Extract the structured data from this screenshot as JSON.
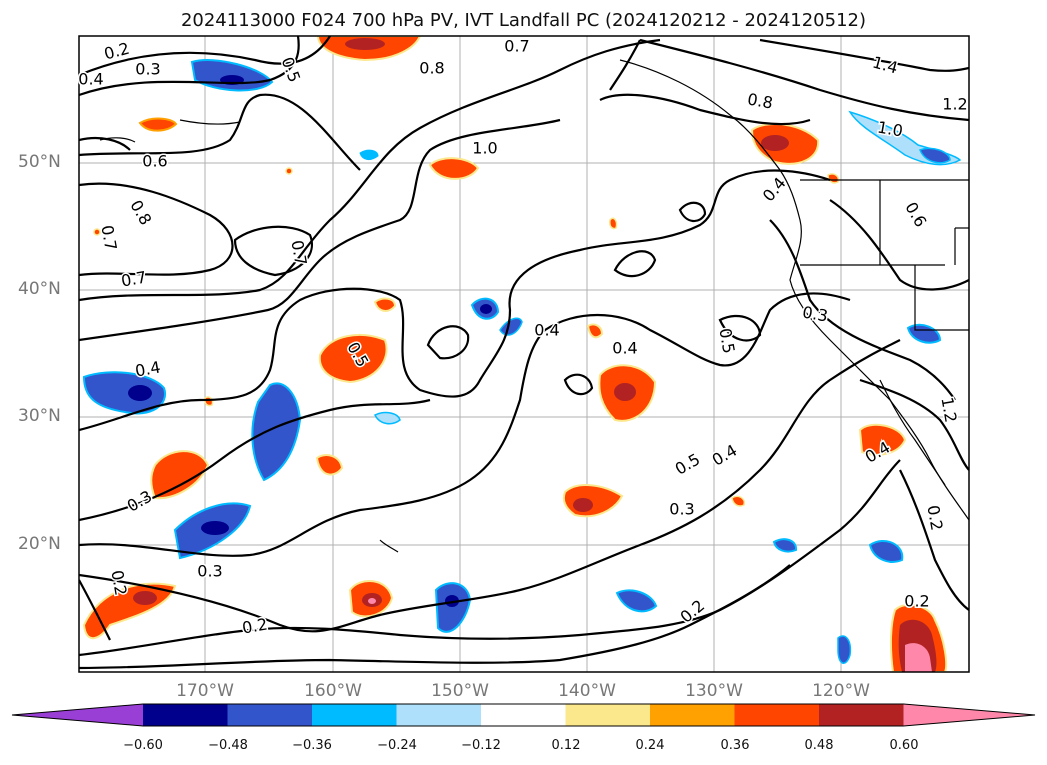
{
  "title": "2024113000 F024 700 hPa PV, IVT Landfall PC (2024120212 - 2024120512)",
  "map": {
    "lon_range": [
      -180,
      -110
    ],
    "lat_range": [
      10,
      60
    ],
    "lat_labels": [
      "50°N",
      "40°N",
      "30°N",
      "20°N"
    ],
    "lon_labels": [
      "170°W",
      "160°W",
      "150°W",
      "140°W",
      "130°W",
      "120°W"
    ],
    "contour_labels": [
      "0.2",
      "0.3",
      "0.4",
      "0.5",
      "0.8",
      "0.7",
      "1.4",
      "1.2",
      "0.8",
      "0.6",
      "1.0",
      "0.8",
      "0.7",
      "1.0",
      "0.7",
      "0.4",
      "0.5",
      "0.6",
      "0.3",
      "0.4",
      "0.4",
      "0.5",
      "0.4",
      "0.3",
      "0.5",
      "0.4",
      "0.3",
      "0.3",
      "0.2",
      "0.2",
      "0.2",
      "0.2",
      "0.2",
      "0.4",
      "0.7",
      "1.2"
    ]
  },
  "colorbar": {
    "colors": [
      "#9a3fd6",
      "#00008c",
      "#3355cc",
      "#00bbff",
      "#aee0fb",
      "#ffffff",
      "#fbe78c",
      "#ffa100",
      "#ff4500",
      "#b22222",
      "#ff88aa"
    ],
    "ticks": [
      "−0.60",
      "−0.48",
      "−0.36",
      "−0.24",
      "−0.12",
      "0.12",
      "0.24",
      "0.36",
      "0.48",
      "0.60"
    ]
  }
}
